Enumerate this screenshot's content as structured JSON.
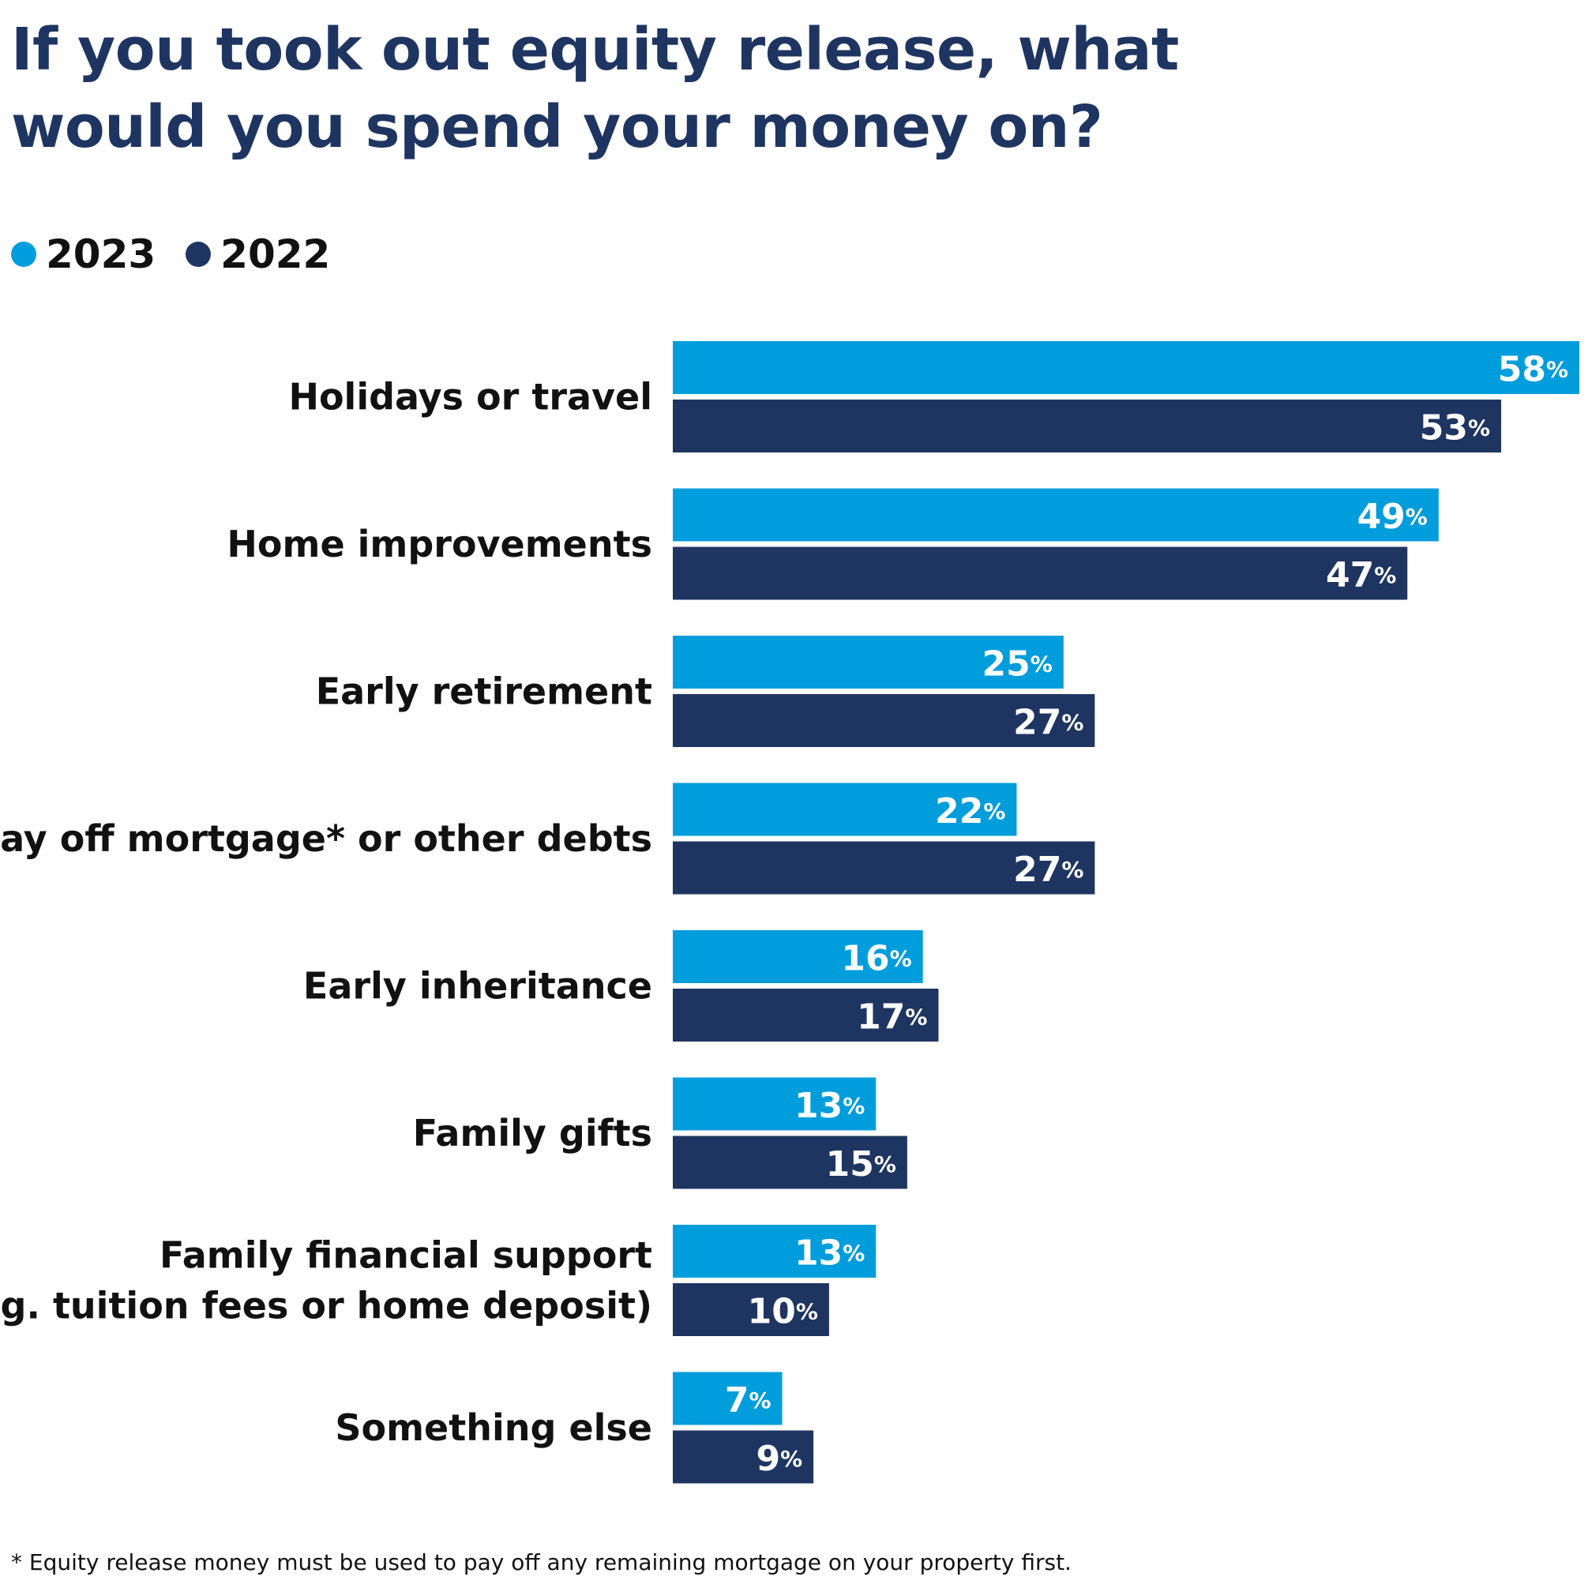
{
  "title": "If you took out equity release, what would you spend your money on?",
  "legend": [
    {
      "label": "2023",
      "color": "#009ddc"
    },
    {
      "label": "2022",
      "color": "#1f3561"
    }
  ],
  "footnote": "* Equity release money must be used to pay off any remaining mortgage on your property first.",
  "chart_data": {
    "type": "bar",
    "orientation": "horizontal",
    "categories": [
      [
        "Holidays or travel"
      ],
      [
        "Home improvements"
      ],
      [
        "Early retirement"
      ],
      [
        "Pay off mortgage* or other debts"
      ],
      [
        "Early inheritance"
      ],
      [
        "Family gifts"
      ],
      [
        "Family financial support",
        "(e.g. tuition fees or home deposit)"
      ],
      [
        "Something else"
      ]
    ],
    "series": [
      {
        "name": "2023",
        "color": "#009ddc",
        "values": [
          58,
          49,
          25,
          22,
          16,
          13,
          13,
          7
        ]
      },
      {
        "name": "2022",
        "color": "#1f3561",
        "values": [
          53,
          47,
          27,
          27,
          17,
          15,
          10,
          9
        ]
      }
    ],
    "unit": "%",
    "xlim": [
      0,
      58
    ],
    "grid": false,
    "legend_position": "top-left"
  }
}
